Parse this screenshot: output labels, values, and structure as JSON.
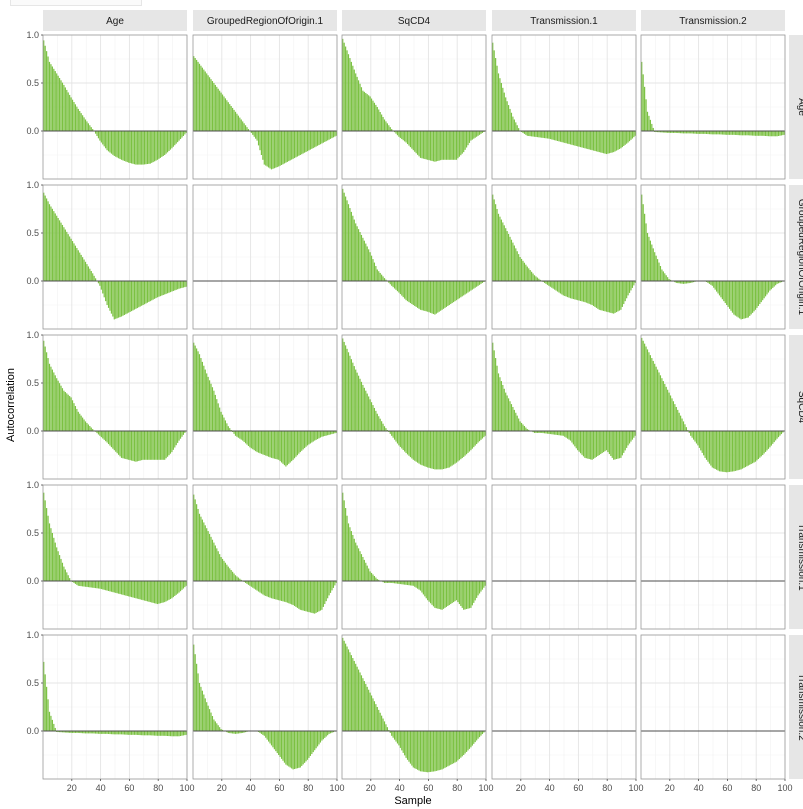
{
  "chart_data": {
    "type": "bar",
    "xlabel": "Sample",
    "ylabel": "Autocorrelation",
    "xlim": [
      0,
      100
    ],
    "ylim": [
      -0.5,
      1.0
    ],
    "x_ticks": [
      "20",
      "40",
      "60",
      "80",
      "100"
    ],
    "y_ticks": [
      "1.0",
      "0.5",
      "0.0"
    ],
    "column_strips": [
      "Age",
      "GroupedRegionOfOrigin.1",
      "SqCD4",
      "Transmission.1",
      "Transmission.2"
    ],
    "row_strips": [
      "Age",
      "GroupedRegionOfOrigin.1",
      "SqCD4",
      "Transmission.1",
      "Transmission.2"
    ],
    "grid": true,
    "bar_color": "#7BC142",
    "lag_sample_points": [
      0,
      5,
      10,
      15,
      20,
      25,
      30,
      35,
      40,
      45,
      50,
      55,
      60,
      65,
      70,
      75,
      80,
      85,
      90,
      95,
      100
    ],
    "panels": [
      {
        "row": "Age",
        "col": "Age",
        "values": [
          1.0,
          0.72,
          0.6,
          0.48,
          0.35,
          0.23,
          0.12,
          0.02,
          -0.1,
          -0.2,
          -0.26,
          -0.3,
          -0.33,
          -0.35,
          -0.35,
          -0.34,
          -0.3,
          -0.25,
          -0.18,
          -0.1,
          -0.02
        ]
      },
      {
        "row": "Age",
        "col": "GroupedRegionOfOrigin.1",
        "values": [
          0.8,
          0.7,
          0.6,
          0.5,
          0.4,
          0.3,
          0.2,
          0.1,
          0.0,
          -0.1,
          -0.35,
          -0.4,
          -0.37,
          -0.33,
          -0.29,
          -0.25,
          -0.21,
          -0.17,
          -0.13,
          -0.09,
          -0.05
        ]
      },
      {
        "row": "Age",
        "col": "SqCD4",
        "values": [
          1.0,
          0.8,
          0.6,
          0.42,
          0.36,
          0.25,
          0.12,
          0.02,
          -0.06,
          -0.12,
          -0.2,
          -0.28,
          -0.3,
          -0.32,
          -0.3,
          -0.3,
          -0.3,
          -0.22,
          -0.1,
          -0.05,
          0.0
        ]
      },
      {
        "row": "Age",
        "col": "Transmission.1",
        "values": [
          1.0,
          0.6,
          0.35,
          0.15,
          0.0,
          -0.05,
          -0.06,
          -0.07,
          -0.08,
          -0.1,
          -0.12,
          -0.14,
          -0.16,
          -0.18,
          -0.2,
          -0.22,
          -0.24,
          -0.22,
          -0.18,
          -0.12,
          -0.05
        ]
      },
      {
        "row": "Age",
        "col": "Transmission.2",
        "values": [
          0.85,
          0.2,
          -0.01,
          -0.015,
          -0.02,
          -0.02,
          -0.025,
          -0.025,
          -0.03,
          -0.03,
          -0.035,
          -0.035,
          -0.04,
          -0.04,
          -0.045,
          -0.045,
          -0.05,
          -0.05,
          -0.055,
          -0.055,
          -0.04
        ]
      },
      {
        "row": "GroupedRegionOfOrigin.1",
        "col": "Age",
        "values": [
          0.95,
          0.8,
          0.68,
          0.56,
          0.44,
          0.32,
          0.2,
          0.08,
          -0.05,
          -0.25,
          -0.4,
          -0.37,
          -0.33,
          -0.29,
          -0.25,
          -0.21,
          -0.17,
          -0.14,
          -0.11,
          -0.08,
          -0.06
        ]
      },
      {
        "row": "GroupedRegionOfOrigin.1",
        "col": "GroupedRegionOfOrigin.1",
        "values": [],
        "empty": true
      },
      {
        "row": "GroupedRegionOfOrigin.1",
        "col": "SqCD4",
        "values": [
          1.0,
          0.8,
          0.6,
          0.45,
          0.3,
          0.12,
          0.03,
          -0.05,
          -0.12,
          -0.2,
          -0.25,
          -0.3,
          -0.32,
          -0.35,
          -0.3,
          -0.25,
          -0.2,
          -0.15,
          -0.1,
          -0.05,
          0.0
        ]
      },
      {
        "row": "GroupedRegionOfOrigin.1",
        "col": "Transmission.1",
        "values": [
          0.95,
          0.7,
          0.55,
          0.4,
          0.25,
          0.15,
          0.06,
          0.0,
          -0.05,
          -0.1,
          -0.15,
          -0.18,
          -0.2,
          -0.22,
          -0.25,
          -0.3,
          -0.32,
          -0.34,
          -0.3,
          -0.15,
          -0.02
        ]
      },
      {
        "row": "GroupedRegionOfOrigin.1",
        "col": "Transmission.2",
        "values": [
          1.0,
          0.5,
          0.3,
          0.12,
          0.02,
          -0.02,
          -0.03,
          -0.02,
          0.0,
          0.0,
          -0.05,
          -0.15,
          -0.25,
          -0.35,
          -0.4,
          -0.38,
          -0.3,
          -0.2,
          -0.1,
          -0.03,
          0.0
        ]
      },
      {
        "row": "SqCD4",
        "col": "Age",
        "values": [
          1.0,
          0.7,
          0.55,
          0.42,
          0.35,
          0.2,
          0.1,
          0.02,
          -0.05,
          -0.12,
          -0.2,
          -0.28,
          -0.3,
          -0.32,
          -0.3,
          -0.3,
          -0.3,
          -0.3,
          -0.22,
          -0.1,
          0.0
        ]
      },
      {
        "row": "SqCD4",
        "col": "GroupedRegionOfOrigin.1",
        "values": [
          0.95,
          0.8,
          0.6,
          0.42,
          0.2,
          0.05,
          -0.05,
          -0.1,
          -0.17,
          -0.22,
          -0.25,
          -0.28,
          -0.3,
          -0.37,
          -0.3,
          -0.22,
          -0.15,
          -0.1,
          -0.06,
          -0.04,
          -0.02
        ]
      },
      {
        "row": "SqCD4",
        "col": "SqCD4",
        "values": [
          1.0,
          0.82,
          0.64,
          0.48,
          0.33,
          0.18,
          0.05,
          -0.05,
          -0.15,
          -0.23,
          -0.3,
          -0.35,
          -0.38,
          -0.4,
          -0.4,
          -0.38,
          -0.33,
          -0.27,
          -0.2,
          -0.12,
          -0.05
        ]
      },
      {
        "row": "SqCD4",
        "col": "Transmission.1",
        "values": [
          1.0,
          0.6,
          0.4,
          0.25,
          0.1,
          0.02,
          -0.02,
          -0.02,
          -0.03,
          -0.04,
          -0.05,
          -0.1,
          -0.2,
          -0.28,
          -0.3,
          -0.25,
          -0.2,
          -0.3,
          -0.28,
          -0.15,
          -0.05
        ]
      },
      {
        "row": "SqCD4",
        "col": "Transmission.2",
        "values": [
          1.0,
          0.85,
          0.7,
          0.55,
          0.4,
          0.25,
          0.1,
          -0.05,
          -0.15,
          -0.28,
          -0.38,
          -0.42,
          -0.43,
          -0.42,
          -0.4,
          -0.36,
          -0.32,
          -0.25,
          -0.17,
          -0.08,
          0.0
        ]
      },
      {
        "row": "Transmission.1",
        "col": "Age",
        "values": [
          1.0,
          0.6,
          0.35,
          0.15,
          0.0,
          -0.05,
          -0.06,
          -0.07,
          -0.08,
          -0.1,
          -0.12,
          -0.14,
          -0.16,
          -0.18,
          -0.2,
          -0.22,
          -0.24,
          -0.22,
          -0.18,
          -0.12,
          -0.05
        ]
      },
      {
        "row": "Transmission.1",
        "col": "GroupedRegionOfOrigin.1",
        "values": [
          0.95,
          0.7,
          0.55,
          0.4,
          0.25,
          0.15,
          0.06,
          0.0,
          -0.05,
          -0.1,
          -0.15,
          -0.18,
          -0.2,
          -0.22,
          -0.25,
          -0.3,
          -0.32,
          -0.34,
          -0.3,
          -0.15,
          -0.02
        ]
      },
      {
        "row": "Transmission.1",
        "col": "SqCD4",
        "values": [
          1.0,
          0.6,
          0.4,
          0.25,
          0.1,
          0.02,
          -0.02,
          -0.02,
          -0.03,
          -0.04,
          -0.05,
          -0.1,
          -0.2,
          -0.28,
          -0.3,
          -0.25,
          -0.2,
          -0.3,
          -0.28,
          -0.15,
          -0.05
        ]
      },
      {
        "row": "Transmission.1",
        "col": "Transmission.1",
        "values": [],
        "empty": true
      },
      {
        "row": "Transmission.1",
        "col": "Transmission.2",
        "values": [],
        "empty": true
      },
      {
        "row": "Transmission.2",
        "col": "Age",
        "values": [
          0.85,
          0.2,
          -0.01,
          -0.015,
          -0.02,
          -0.02,
          -0.025,
          -0.025,
          -0.03,
          -0.03,
          -0.035,
          -0.035,
          -0.04,
          -0.04,
          -0.045,
          -0.045,
          -0.05,
          -0.05,
          -0.055,
          -0.055,
          -0.04
        ]
      },
      {
        "row": "Transmission.2",
        "col": "GroupedRegionOfOrigin.1",
        "values": [
          1.0,
          0.5,
          0.3,
          0.12,
          0.02,
          -0.02,
          -0.03,
          -0.02,
          0.0,
          0.0,
          -0.05,
          -0.15,
          -0.25,
          -0.35,
          -0.4,
          -0.38,
          -0.3,
          -0.2,
          -0.1,
          -0.03,
          0.0
        ]
      },
      {
        "row": "Transmission.2",
        "col": "SqCD4",
        "values": [
          1.0,
          0.85,
          0.7,
          0.55,
          0.4,
          0.25,
          0.1,
          -0.05,
          -0.15,
          -0.28,
          -0.38,
          -0.42,
          -0.43,
          -0.42,
          -0.4,
          -0.36,
          -0.32,
          -0.25,
          -0.17,
          -0.08,
          0.0
        ]
      },
      {
        "row": "Transmission.2",
        "col": "Transmission.1",
        "values": [],
        "empty": true
      },
      {
        "row": "Transmission.2",
        "col": "Transmission.2",
        "values": [],
        "empty": true
      }
    ]
  }
}
